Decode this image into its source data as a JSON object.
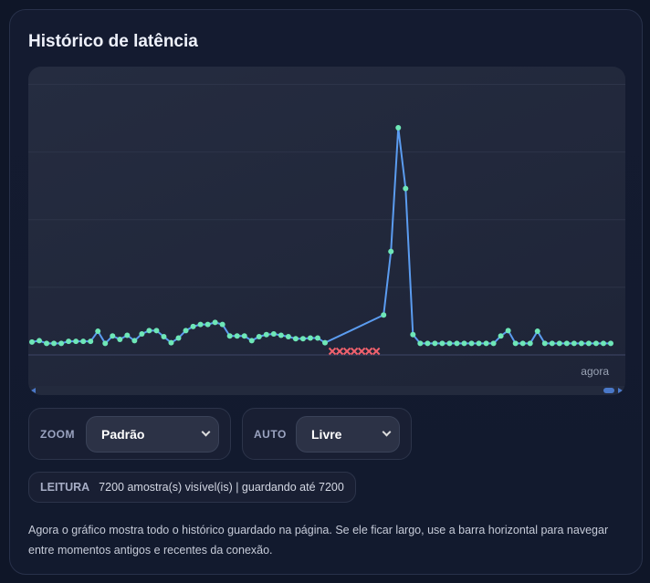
{
  "title": "Histórico de latência",
  "chart_data": {
    "type": "line",
    "title": "",
    "xlabel": "",
    "ylabel": "",
    "x_end_label": "agora",
    "ylim": [
      0,
      425
    ],
    "gridlines": [
      0,
      100,
      200,
      300,
      400
    ],
    "grid": true,
    "line_color": "#5b9cf0",
    "point_color": "#6ee7b7",
    "missing_marker_color": "#f0616d",
    "values": [
      19,
      21,
      17,
      17,
      17,
      20,
      20,
      20,
      20,
      35,
      17,
      28,
      23,
      29,
      21,
      31,
      36,
      36,
      27,
      18,
      25,
      36,
      42,
      45,
      45,
      48,
      45,
      28,
      28,
      28,
      21,
      27,
      30,
      31,
      29,
      27,
      24,
      24,
      25,
      25,
      18,
      null,
      null,
      null,
      null,
      null,
      null,
      null,
      59,
      153,
      336,
      246,
      30,
      17,
      17,
      17,
      17,
      17,
      17,
      17,
      17,
      17,
      17,
      17,
      28,
      36,
      17,
      17,
      17,
      35,
      17,
      17,
      17,
      17,
      17,
      17,
      17,
      17,
      17,
      17
    ]
  },
  "controls": {
    "zoom": {
      "label": "ZOOM",
      "value": "Padrão"
    },
    "auto": {
      "label": "AUTO",
      "value": "Livre"
    }
  },
  "reading": {
    "label": "LEITURA",
    "value": "7200 amostra(s) visível(is) | guardando até 7200"
  },
  "description": "Agora o gráfico mostra todo o histórico guardado na página. Se ele ficar largo, use a barra horizontal para navegar entre momentos antigos e recentes da conexão."
}
